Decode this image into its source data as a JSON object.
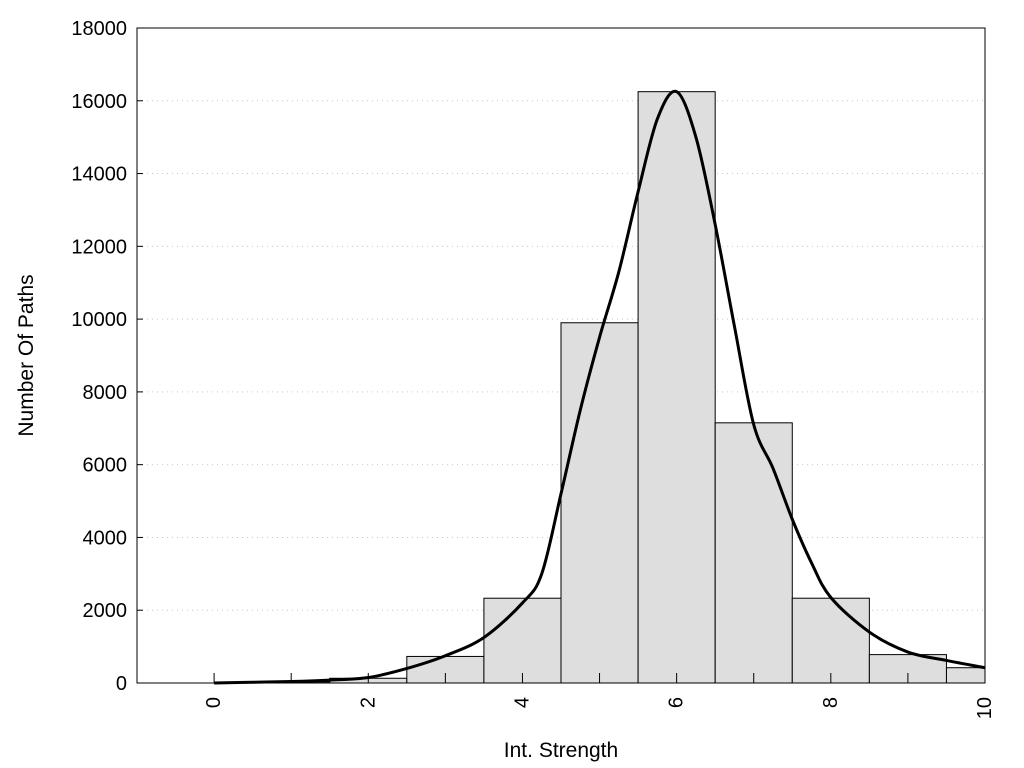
{
  "chart_data": {
    "type": "bar",
    "title": "",
    "xlabel": "Int. Strength",
    "ylabel": "Number Of Paths",
    "xlim": [
      -1,
      10
    ],
    "ylim": [
      0,
      18000
    ],
    "grid": "horizontal dotted",
    "x_ticks": [
      0,
      2,
      4,
      6,
      8,
      10
    ],
    "y_ticks": [
      0,
      2000,
      4000,
      6000,
      8000,
      10000,
      12000,
      14000,
      16000,
      18000
    ],
    "categories": [
      0,
      1,
      2,
      3,
      4,
      5,
      6,
      7,
      8,
      9,
      10
    ],
    "values": [
      0,
      30,
      130,
      730,
      2330,
      9900,
      16250,
      7150,
      2330,
      780,
      420
    ],
    "curve": {
      "x": [
        0,
        0.5,
        1,
        1.5,
        2,
        2.5,
        3,
        3.5,
        4,
        4.25,
        4.5,
        4.75,
        5,
        5.25,
        5.5,
        5.75,
        6,
        6.25,
        6.5,
        6.75,
        7,
        7.25,
        7.5,
        7.75,
        8,
        8.5,
        9,
        9.5,
        10
      ],
      "y": [
        0,
        20,
        40,
        80,
        150,
        400,
        750,
        1250,
        2200,
        3000,
        5200,
        7500,
        9500,
        11300,
        13500,
        15500,
        16250,
        15000,
        12600,
        9800,
        7100,
        5900,
        4500,
        3300,
        2350,
        1400,
        850,
        620,
        420
      ]
    },
    "colors": {
      "bar_fill": "#dedede",
      "bar_edge": "#000000",
      "curve": "#000000",
      "grid": "#c8c8c8"
    }
  }
}
